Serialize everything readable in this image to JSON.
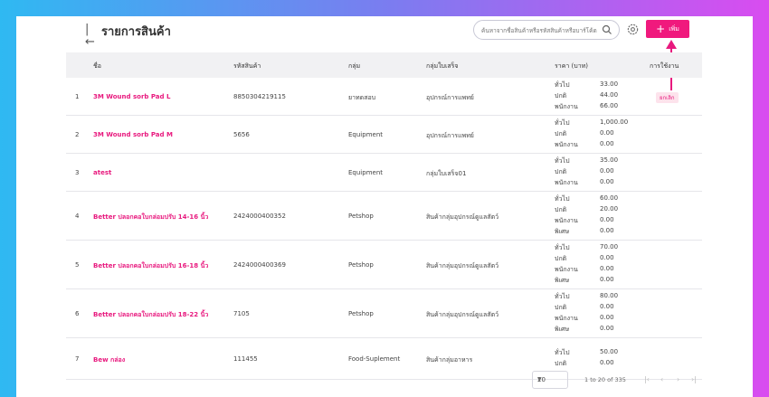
{
  "header": {
    "back_glyph": "|←",
    "title": "รายการสินค้า",
    "search_placeholder": "ค้นหาจากชื่อสินค้าหรือรหัสสินค้าหรือบาร์โค้ด",
    "add_label": "เพิ่ม",
    "add_plus": "+",
    "accent_color": "#f0197d"
  },
  "table": {
    "columns": {
      "name": "ชื่อ",
      "code": "รหัสสินค้า",
      "group": "กลุ่ม",
      "receipt_group": "กลุ่มใบเสร็จ",
      "price": "ราคา (บาท)",
      "status": "การใช้งาน"
    },
    "rows": [
      {
        "no": "1",
        "name": "3M Wound sorb Pad L",
        "code": "8850304219115",
        "group": "ยาทดสอบ",
        "receipt_group": "อุปกรณ์การแพทย์",
        "prices": [
          {
            "label": "ทั่วไป",
            "value": "33.00"
          },
          {
            "label": "ปกติ",
            "value": "44.00"
          },
          {
            "label": "พนักงาน",
            "value": "66.00"
          }
        ],
        "status": "ยกเลิก"
      },
      {
        "no": "2",
        "name": "3M Wound sorb Pad M",
        "code": "5656",
        "group": "Equipment",
        "receipt_group": "อุปกรณ์การแพทย์",
        "prices": [
          {
            "label": "ทั่วไป",
            "value": "1,000.00"
          },
          {
            "label": "ปกติ",
            "value": "0.00"
          },
          {
            "label": "พนักงาน",
            "value": "0.00"
          }
        ],
        "status": ""
      },
      {
        "no": "3",
        "name": "atest",
        "code": "",
        "group": "Equipment",
        "receipt_group": "กลุ่มใบเสร็จ01",
        "prices": [
          {
            "label": "ทั่วไป",
            "value": "35.00"
          },
          {
            "label": "ปกติ",
            "value": "0.00"
          },
          {
            "label": "พนักงาน",
            "value": "0.00"
          }
        ],
        "status": ""
      },
      {
        "no": "4",
        "name": "Better ปลอกคอใบกล่อมปรับ 14-16 นิ้ว",
        "code": "2424000400352",
        "group": "Petshop",
        "receipt_group": "สินค้ากลุ่มอุปกรณ์ดูแลสัตว์",
        "prices": [
          {
            "label": "ทั่วไป",
            "value": "60.00"
          },
          {
            "label": "ปกติ",
            "value": "20.00"
          },
          {
            "label": "พนักงาน",
            "value": "0.00"
          },
          {
            "label": "พิเศษ",
            "value": "0.00"
          }
        ],
        "status": ""
      },
      {
        "no": "5",
        "name": "Better ปลอกคอใบกล่อมปรับ 16-18 นิ้ว",
        "code": "2424000400369",
        "group": "Petshop",
        "receipt_group": "สินค้ากลุ่มอุปกรณ์ดูแลสัตว์",
        "prices": [
          {
            "label": "ทั่วไป",
            "value": "70.00"
          },
          {
            "label": "ปกติ",
            "value": "0.00"
          },
          {
            "label": "พนักงาน",
            "value": "0.00"
          },
          {
            "label": "พิเศษ",
            "value": "0.00"
          }
        ],
        "status": ""
      },
      {
        "no": "6",
        "name": "Better ปลอกคอใบกล่อมปรับ 18-22 นิ้ว",
        "code": "7105",
        "group": "Petshop",
        "receipt_group": "สินค้ากลุ่มอุปกรณ์ดูแลสัตว์",
        "prices": [
          {
            "label": "ทั่วไป",
            "value": "80.00"
          },
          {
            "label": "ปกติ",
            "value": "0.00"
          },
          {
            "label": "พนักงาน",
            "value": "0.00"
          },
          {
            "label": "พิเศษ",
            "value": "0.00"
          }
        ],
        "status": ""
      },
      {
        "no": "7",
        "name": "Bew กล่อง",
        "code": "111455",
        "group": "Food-Suplement",
        "receipt_group": "สินค้ากลุ่มอาหาร",
        "prices": [
          {
            "label": "ทั่วไป",
            "value": "50.00"
          },
          {
            "label": "ปกติ",
            "value": "0.00"
          }
        ],
        "status": ""
      }
    ]
  },
  "pager": {
    "rows_per_page": "20",
    "range_text": "1 to 20 of 335",
    "first": "|‹",
    "prev": "‹",
    "next": "›",
    "last": "›|"
  }
}
